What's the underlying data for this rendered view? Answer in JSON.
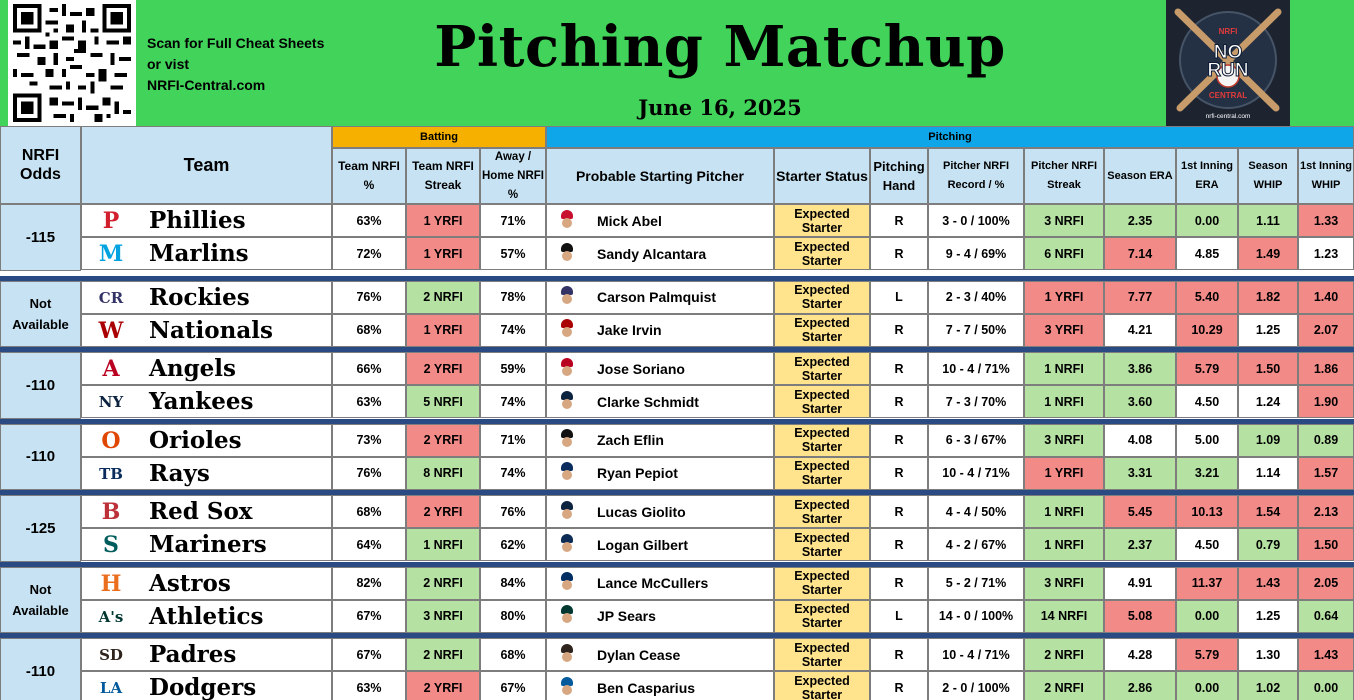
{
  "banner": {
    "scan_lines": [
      "Scan for Full Cheat Sheets",
      "or vist",
      "NRFI-Central.com"
    ],
    "title": "Pitching Matchup",
    "date": "June 16, 2025",
    "logo_text": {
      "top": "NRFI",
      "main_1": "NO",
      "main_2": "RUN",
      "sub": "CENTRAL",
      "url": "nrfi-central.com"
    }
  },
  "groups": {
    "batting": "Batting",
    "pitching": "Pitching"
  },
  "headers": {
    "odds": "NRFI Odds",
    "team": "Team",
    "team_nrfi_pct": "Team NRFI %",
    "team_nrfi_streak": "Team NRFI Streak",
    "away_home_pct": "Away / Home NRFI %",
    "pitcher": "Probable Starting Pitcher",
    "status": "Starter Status",
    "hand": "Pitching Hand",
    "record": "Pitcher NRFI Record / %",
    "pitcher_streak": "Pitcher NRFI Streak",
    "era": "Season ERA",
    "first_era": "1st Inning ERA",
    "whip": "Season WHIP",
    "first_whip": "1st Inning WHIP"
  },
  "colors": {
    "red": "#f28a87",
    "green": "#b5e2a3",
    "yellow": "#ffe38d",
    "header_blue": "#c7e3f3",
    "batting_orange": "#f5b000",
    "pitching_blue": "#0ea6e8",
    "banner_green": "#41d35a"
  },
  "matchups": [
    {
      "odds": "-115",
      "teams": [
        {
          "team": "Phillies",
          "logo": "P",
          "logo_color": "#d21f2e",
          "cap": "#c8102e",
          "pct": "63%",
          "streak": "1 YRFI",
          "streak_color": "red",
          "ah": "71%",
          "pitcher": "Mick Abel",
          "status": "Expected Starter",
          "hand": "R",
          "record": "3 - 0 / 100%",
          "pstreak": "3 NRFI",
          "pstreak_color": "green",
          "era": "2.35",
          "era_color": "green",
          "fera": "0.00",
          "fera_color": "green",
          "whip": "1.11",
          "whip_color": "green",
          "fwhip": "1.33",
          "fwhip_color": "red"
        },
        {
          "team": "Marlins",
          "logo": "M",
          "logo_color": "#00a3e0",
          "cap": "#111111",
          "pct": "72%",
          "streak": "1 YRFI",
          "streak_color": "red",
          "ah": "57%",
          "pitcher": "Sandy Alcantara",
          "status": "Expected Starter",
          "hand": "R",
          "record": "9 - 4 / 69%",
          "pstreak": "6 NRFI",
          "pstreak_color": "green",
          "era": "7.14",
          "era_color": "red",
          "fera": "4.85",
          "fera_color": "white",
          "whip": "1.49",
          "whip_color": "red",
          "fwhip": "1.23",
          "fwhip_color": "white"
        }
      ]
    },
    {
      "odds": "Not Available",
      "teams": [
        {
          "team": "Rockies",
          "logo": "CR",
          "logo_color": "#333366",
          "cap": "#333366",
          "pct": "76%",
          "streak": "2 NRFI",
          "streak_color": "green",
          "ah": "78%",
          "pitcher": "Carson Palmquist",
          "status": "Expected Starter",
          "hand": "L",
          "record": "2 - 3 / 40%",
          "pstreak": "1 YRFI",
          "pstreak_color": "red",
          "era": "7.77",
          "era_color": "red",
          "fera": "5.40",
          "fera_color": "red",
          "whip": "1.82",
          "whip_color": "red",
          "fwhip": "1.40",
          "fwhip_color": "red"
        },
        {
          "team": "Nationals",
          "logo": "W",
          "logo_color": "#ab0003",
          "cap": "#ab0003",
          "pct": "68%",
          "streak": "1 YRFI",
          "streak_color": "red",
          "ah": "74%",
          "pitcher": "Jake Irvin",
          "status": "Expected Starter",
          "hand": "R",
          "record": "7 - 7 / 50%",
          "pstreak": "3 YRFI",
          "pstreak_color": "red",
          "era": "4.21",
          "era_color": "white",
          "fera": "10.29",
          "fera_color": "red",
          "whip": "1.25",
          "whip_color": "white",
          "fwhip": "2.07",
          "fwhip_color": "red"
        }
      ]
    },
    {
      "odds": "-110",
      "teams": [
        {
          "team": "Angels",
          "logo": "A",
          "logo_color": "#ba0021",
          "cap": "#ba0021",
          "pct": "66%",
          "streak": "2 YRFI",
          "streak_color": "red",
          "ah": "59%",
          "pitcher": "Jose Soriano",
          "status": "Expected Starter",
          "hand": "R",
          "record": "10 - 4 / 71%",
          "pstreak": "1 NRFI",
          "pstreak_color": "green",
          "era": "3.86",
          "era_color": "green",
          "fera": "5.79",
          "fera_color": "red",
          "whip": "1.50",
          "whip_color": "red",
          "fwhip": "1.86",
          "fwhip_color": "red"
        },
        {
          "team": "Yankees",
          "logo": "NY",
          "logo_color": "#0c2340",
          "cap": "#0c2340",
          "pct": "63%",
          "streak": "5 NRFI",
          "streak_color": "green",
          "ah": "74%",
          "pitcher": "Clarke Schmidt",
          "status": "Expected Starter",
          "hand": "R",
          "record": "7 - 3 / 70%",
          "pstreak": "1 NRFI",
          "pstreak_color": "green",
          "era": "3.60",
          "era_color": "green",
          "fera": "4.50",
          "fera_color": "white",
          "whip": "1.24",
          "whip_color": "white",
          "fwhip": "1.90",
          "fwhip_color": "red"
        }
      ]
    },
    {
      "odds": "-110",
      "teams": [
        {
          "team": "Orioles",
          "logo": "O",
          "logo_color": "#df4601",
          "cap": "#111111",
          "pct": "73%",
          "streak": "2 YRFI",
          "streak_color": "red",
          "ah": "71%",
          "pitcher": "Zach Eflin",
          "status": "Expected Starter",
          "hand": "R",
          "record": "6 - 3 / 67%",
          "pstreak": "3 NRFI",
          "pstreak_color": "green",
          "era": "4.08",
          "era_color": "white",
          "fera": "5.00",
          "fera_color": "white",
          "whip": "1.09",
          "whip_color": "green",
          "fwhip": "0.89",
          "fwhip_color": "green"
        },
        {
          "team": "Rays",
          "logo": "TB",
          "logo_color": "#092c5c",
          "cap": "#092c5c",
          "pct": "76%",
          "streak": "8 NRFI",
          "streak_color": "green",
          "ah": "74%",
          "pitcher": "Ryan Pepiot",
          "status": "Expected Starter",
          "hand": "R",
          "record": "10 - 4 / 71%",
          "pstreak": "1 YRFI",
          "pstreak_color": "red",
          "era": "3.31",
          "era_color": "green",
          "fera": "3.21",
          "fera_color": "green",
          "whip": "1.14",
          "whip_color": "white",
          "fwhip": "1.57",
          "fwhip_color": "red"
        }
      ]
    },
    {
      "odds": "-125",
      "teams": [
        {
          "team": "Red Sox",
          "logo": "B",
          "logo_color": "#bd3039",
          "cap": "#0c2340",
          "pct": "68%",
          "streak": "2 YRFI",
          "streak_color": "red",
          "ah": "76%",
          "pitcher": "Lucas Giolito",
          "status": "Expected Starter",
          "hand": "R",
          "record": "4 - 4 / 50%",
          "pstreak": "1 NRFI",
          "pstreak_color": "green",
          "era": "5.45",
          "era_color": "red",
          "fera": "10.13",
          "fera_color": "red",
          "whip": "1.54",
          "whip_color": "red",
          "fwhip": "2.13",
          "fwhip_color": "red"
        },
        {
          "team": "Mariners",
          "logo": "S",
          "logo_color": "#005c5c",
          "cap": "#0c2c56",
          "pct": "64%",
          "streak": "1 NRFI",
          "streak_color": "green",
          "ah": "62%",
          "pitcher": "Logan Gilbert",
          "status": "Expected Starter",
          "hand": "R",
          "record": "4 - 2 / 67%",
          "pstreak": "1 NRFI",
          "pstreak_color": "green",
          "era": "2.37",
          "era_color": "green",
          "fera": "4.50",
          "fera_color": "white",
          "whip": "0.79",
          "whip_color": "green",
          "fwhip": "1.50",
          "fwhip_color": "red"
        }
      ]
    },
    {
      "odds": "Not Available",
      "teams": [
        {
          "team": "Astros",
          "logo": "H",
          "logo_color": "#eb6e1f",
          "cap": "#002d62",
          "pct": "82%",
          "streak": "2 NRFI",
          "streak_color": "green",
          "ah": "84%",
          "pitcher": "Lance McCullers",
          "status": "Expected Starter",
          "hand": "R",
          "record": "5 - 2 / 71%",
          "pstreak": "3 NRFI",
          "pstreak_color": "green",
          "era": "4.91",
          "era_color": "white",
          "fera": "11.37",
          "fera_color": "red",
          "whip": "1.43",
          "whip_color": "red",
          "fwhip": "2.05",
          "fwhip_color": "red"
        },
        {
          "team": "Athletics",
          "logo": "A's",
          "logo_color": "#003831",
          "cap": "#003831",
          "pct": "67%",
          "streak": "3 NRFI",
          "streak_color": "green",
          "ah": "80%",
          "pitcher": "JP Sears",
          "status": "Expected Starter",
          "hand": "L",
          "record": "14 - 0 / 100%",
          "pstreak": "14 NRFI",
          "pstreak_color": "green",
          "era": "5.08",
          "era_color": "red",
          "fera": "0.00",
          "fera_color": "green",
          "whip": "1.25",
          "whip_color": "white",
          "fwhip": "0.64",
          "fwhip_color": "green"
        }
      ]
    },
    {
      "odds": "-110",
      "teams": [
        {
          "team": "Padres",
          "logo": "SD",
          "logo_color": "#2f241d",
          "cap": "#2f241d",
          "pct": "67%",
          "streak": "2 NRFI",
          "streak_color": "green",
          "ah": "68%",
          "pitcher": "Dylan Cease",
          "status": "Expected Starter",
          "hand": "R",
          "record": "10 - 4 / 71%",
          "pstreak": "2 NRFI",
          "pstreak_color": "green",
          "era": "4.28",
          "era_color": "white",
          "fera": "5.79",
          "fera_color": "red",
          "whip": "1.30",
          "whip_color": "white",
          "fwhip": "1.43",
          "fwhip_color": "red"
        },
        {
          "team": "Dodgers",
          "logo": "LA",
          "logo_color": "#005a9c",
          "cap": "#005a9c",
          "pct": "63%",
          "streak": "2 YRFI",
          "streak_color": "red",
          "ah": "67%",
          "pitcher": "Ben Casparius",
          "status": "Expected Starter",
          "hand": "R",
          "record": "2 - 0 / 100%",
          "pstreak": "2 NRFI",
          "pstreak_color": "green",
          "era": "2.86",
          "era_color": "green",
          "fera": "0.00",
          "fera_color": "green",
          "whip": "1.02",
          "whip_color": "green",
          "fwhip": "0.00",
          "fwhip_color": "green"
        }
      ]
    }
  ]
}
